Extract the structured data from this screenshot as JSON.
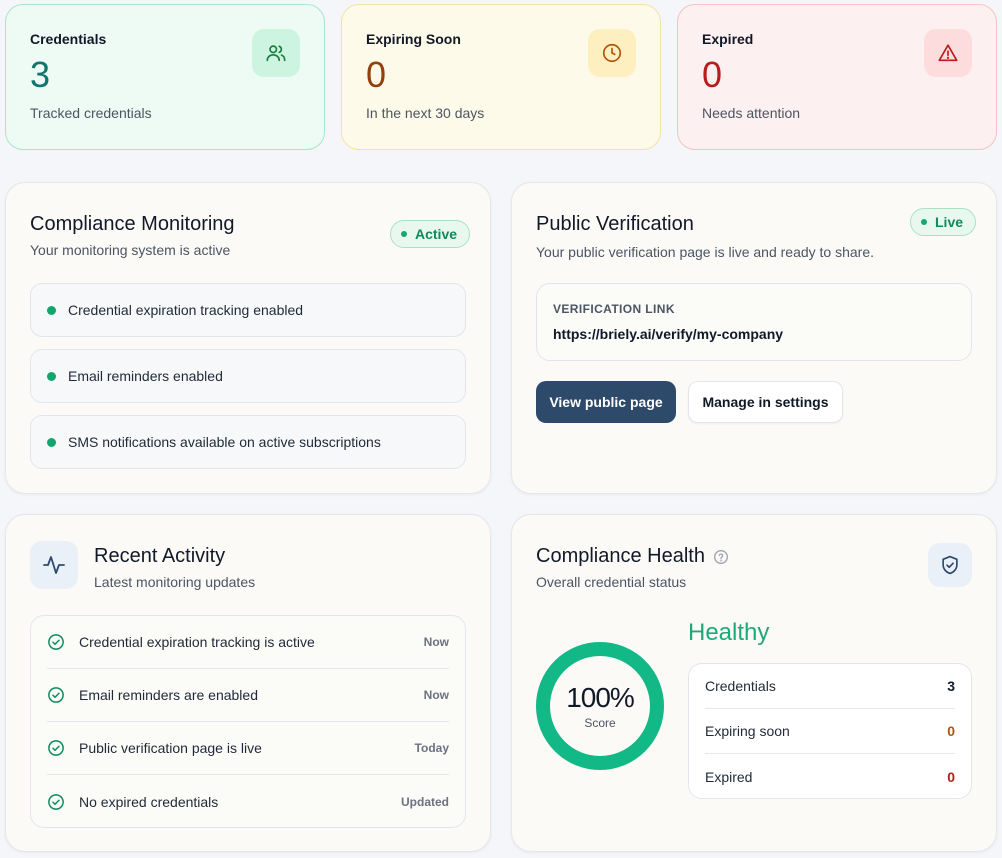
{
  "stats": [
    {
      "label": "Credentials",
      "value": "3",
      "sub": "Tracked credentials",
      "icon": "users-icon",
      "accent": "#0f766e"
    },
    {
      "label": "Expiring Soon",
      "value": "0",
      "sub": "In the next 30 days",
      "icon": "clock-icon",
      "accent": "#92400e"
    },
    {
      "label": "Expired",
      "value": "0",
      "sub": "Needs attention",
      "icon": "alert-triangle-icon",
      "accent": "#b91c1c"
    }
  ],
  "monitoring": {
    "title": "Compliance Monitoring",
    "subtitle": "Your monitoring system is active",
    "badge": "Active",
    "items": [
      "Credential expiration tracking enabled",
      "Email reminders enabled",
      "SMS notifications available on active subscriptions"
    ]
  },
  "verification": {
    "title": "Public Verification",
    "subtitle": "Your public verification page is live and ready to share.",
    "badge": "Live",
    "link_caption": "VERIFICATION LINK",
    "link_url": "https://briely.ai/verify/my-company",
    "primary_button": "View public page",
    "secondary_button": "Manage in settings"
  },
  "activity": {
    "title": "Recent Activity",
    "subtitle": "Latest monitoring updates",
    "icon": "activity-pulse-icon",
    "rows": [
      {
        "text": "Credential expiration tracking is active",
        "time": "Now"
      },
      {
        "text": "Email reminders are enabled",
        "time": "Now"
      },
      {
        "text": "Public verification page is live",
        "time": "Today"
      },
      {
        "text": "No expired credentials",
        "time": "Updated"
      }
    ]
  },
  "health": {
    "title": "Compliance Health",
    "subtitle": "Overall credential status",
    "status": "Healthy",
    "score": "100%",
    "score_label": "Score",
    "score_fraction": 1.0,
    "rows": [
      {
        "label": "Credentials",
        "value": "3",
        "color": "#111827"
      },
      {
        "label": "Expiring soon",
        "value": "0",
        "color": "#b45309"
      },
      {
        "label": "Expired",
        "value": "0",
        "color": "#b91c1c"
      }
    ],
    "accent": "#12b886"
  }
}
